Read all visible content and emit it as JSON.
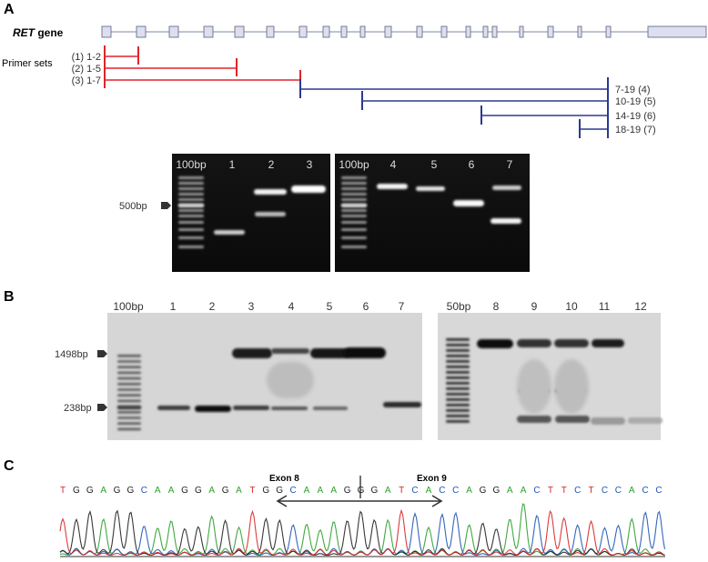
{
  "panels": {
    "a": {
      "letter": "A",
      "gene_label": {
        "italic": "RET",
        "rest": " gene"
      },
      "primer_sets_label": "Primer sets",
      "primers_left": [
        "(1) 1-2",
        "(2) 1-5",
        "(3) 1-7"
      ],
      "primers_right": [
        "7-19 (4)",
        "10-19 (5)",
        "14-19 (6)",
        "18-19 (7)"
      ],
      "gel1": {
        "lanes": [
          "100bp",
          "1",
          "2",
          "3"
        ]
      },
      "gel2": {
        "lanes": [
          "100bp",
          "4",
          "5",
          "6",
          "7"
        ]
      },
      "marker": "500bp"
    },
    "b": {
      "letter": "B",
      "gel1": {
        "lanes": [
          "100bp",
          "1",
          "2",
          "3",
          "4",
          "5",
          "6",
          "7"
        ]
      },
      "gel2": {
        "lanes": [
          "50bp",
          "8",
          "9",
          "10",
          "11",
          "12"
        ]
      },
      "markers": [
        "1498bp",
        "238bp"
      ]
    },
    "c": {
      "letter": "C",
      "sequence": [
        "T",
        "G",
        "G",
        "A",
        "G",
        "G",
        "C",
        "A",
        "A",
        "G",
        "G",
        "A",
        "G",
        "A",
        "T",
        "G",
        "G",
        "C",
        "A",
        "A",
        "A",
        "G",
        "G",
        "G",
        "A",
        "T",
        "C",
        "A",
        "C",
        "C",
        "A",
        "G",
        "G",
        "A",
        "A",
        "C",
        "T",
        "T",
        "C",
        "T",
        "C",
        "C",
        "A",
        "C",
        "C"
      ],
      "exon_left": "Exon 8",
      "exon_right": "Exon 9"
    }
  },
  "colors": {
    "red": "#e0242b",
    "blue": "#2b3990",
    "exon_fill": "#dcdff0",
    "exon_stroke": "#6b7088",
    "base_A": "#2ca02c",
    "base_C": "#1f57b4",
    "base_G": "#222222",
    "base_T": "#d62728"
  }
}
